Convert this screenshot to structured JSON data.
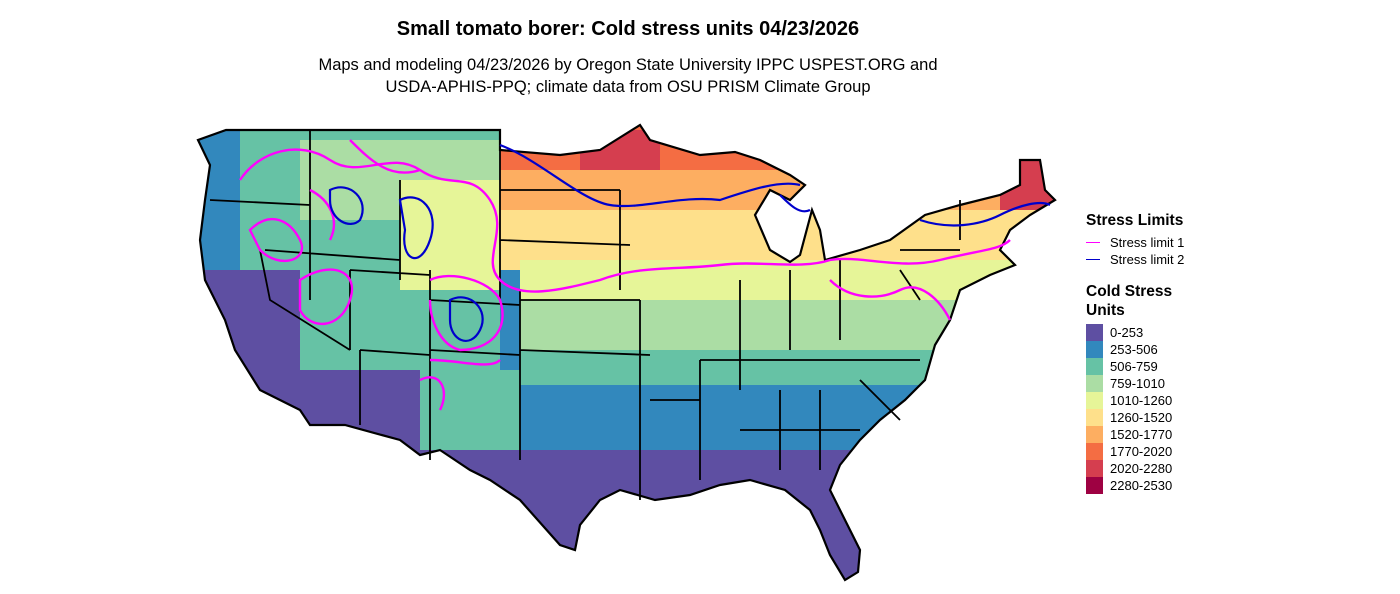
{
  "title": "Small tomato borer: Cold stress units 04/23/2026",
  "subtitle_line1": "Maps and modeling 04/23/2026 by Oregon State University IPPC USPEST.ORG and",
  "subtitle_line2": "USDA-APHIS-PPQ; climate data from OSU PRISM Climate Group",
  "legend": {
    "stress_title": "Stress Limits",
    "stress_lines": [
      {
        "label": "Stress limit 1",
        "color": "#ff00ff"
      },
      {
        "label": "Stress limit 2",
        "color": "#0000cc"
      }
    ],
    "cold_title": "Cold Stress Units",
    "bins": [
      {
        "label": "0-253",
        "color": "#5e4fa2"
      },
      {
        "label": "253-506",
        "color": "#3288bd"
      },
      {
        "label": "506-759",
        "color": "#66c2a5"
      },
      {
        "label": "759-1010",
        "color": "#abdda4"
      },
      {
        "label": "1010-1260",
        "color": "#e6f598"
      },
      {
        "label": "1260-1520",
        "color": "#fee08b"
      },
      {
        "label": "1520-1770",
        "color": "#fdae61"
      },
      {
        "label": "1770-2020",
        "color": "#f46d43"
      },
      {
        "label": "2020-2280",
        "color": "#d53e4f"
      },
      {
        "label": "2280-2530",
        "color": "#9e0142"
      }
    ]
  }
}
